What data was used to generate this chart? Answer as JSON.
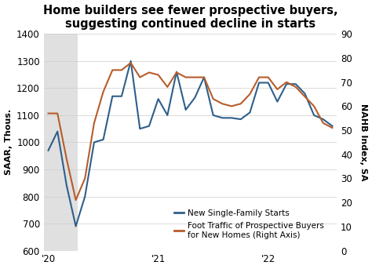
{
  "title": "Home builders see fewer prospective buyers,\nsuggesting continued decline in starts",
  "ylabel_left": "SAAR, Thous.",
  "ylabel_right": "NAHB Index, SA",
  "ylim_left": [
    600,
    1400
  ],
  "ylim_right": [
    0,
    90
  ],
  "yticks_left": [
    600,
    700,
    800,
    900,
    1000,
    1100,
    1200,
    1300,
    1400
  ],
  "yticks_right": [
    0,
    10,
    20,
    30,
    40,
    50,
    60,
    70,
    80,
    90
  ],
  "shade_x_start": -0.5,
  "shade_x_end": 3.2,
  "background_color": "#ffffff",
  "shade_color": "#e0e0e0",
  "line1_color": "#2e5f8a",
  "line2_color": "#b85c2a",
  "legend_line1": "New Single-Family Starts",
  "legend_line2": "Foot Traffic of Prospective Buyers\nfor New Homes (Right Axis)",
  "starts_y": [
    970,
    1040,
    840,
    690,
    800,
    1000,
    1010,
    1170,
    1170,
    1300,
    1050,
    1060,
    1160,
    1100,
    1260,
    1120,
    1165,
    1240,
    1100,
    1090,
    1090,
    1085,
    1110,
    1220,
    1220,
    1150,
    1215,
    1215,
    1180,
    1100,
    1085,
    1060
  ],
  "traffic_y": [
    57,
    57,
    38,
    21,
    30,
    53,
    66,
    75,
    75,
    78,
    72,
    74,
    73,
    68,
    74,
    72,
    72,
    72,
    63,
    61,
    60,
    61,
    65,
    72,
    72,
    67,
    70,
    68,
    64,
    60,
    53,
    51
  ],
  "xtick_positions": [
    0,
    12,
    24
  ],
  "xtick_labels": [
    "'20",
    "'21",
    "'22"
  ],
  "xlim": [
    -0.5,
    31.5
  ],
  "n_points": 32,
  "title_fontsize": 10.5,
  "tick_fontsize": 8.5,
  "ylabel_fontsize": 8,
  "legend_fontsize": 7.5
}
